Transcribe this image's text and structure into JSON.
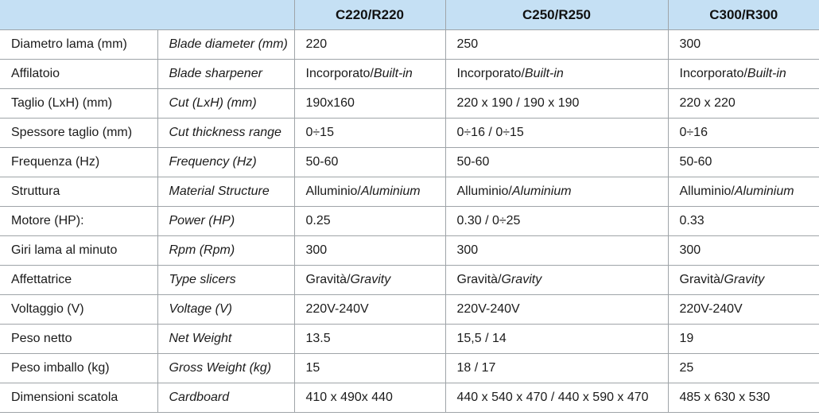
{
  "header": {
    "models": [
      "C220/R220",
      "C250/R250",
      "C300/R300"
    ]
  },
  "rows": [
    {
      "it": "Diametro lama (mm)",
      "en": "Blade diameter (mm)",
      "v": [
        {
          "a": "220",
          "b": ""
        },
        {
          "a": "250",
          "b": ""
        },
        {
          "a": "300",
          "b": ""
        }
      ]
    },
    {
      "it": "Affilatoio",
      "en": "Blade sharpener",
      "v": [
        {
          "a": "Incorporato/",
          "b": "Built-in"
        },
        {
          "a": "Incorporato/",
          "b": "Built-in"
        },
        {
          "a": "Incorporato/",
          "b": "Built-in"
        }
      ]
    },
    {
      "it": "Taglio (LxH) (mm)",
      "en": "Cut (LxH) (mm)",
      "v": [
        {
          "a": "190x160",
          "b": ""
        },
        {
          "a": "220 x 190 / 190 x 190",
          "b": ""
        },
        {
          "a": "220 x 220",
          "b": ""
        }
      ]
    },
    {
      "it": "Spessore taglio (mm)",
      "en": "Cut thickness range",
      "v": [
        {
          "a": "0÷15",
          "b": ""
        },
        {
          "a": "0÷16 / 0÷15",
          "b": ""
        },
        {
          "a": "0÷16",
          "b": ""
        }
      ]
    },
    {
      "it": "Frequenza (Hz)",
      "en": "Frequency (Hz)",
      "v": [
        {
          "a": "50-60",
          "b": ""
        },
        {
          "a": "50-60",
          "b": ""
        },
        {
          "a": "50-60",
          "b": ""
        }
      ]
    },
    {
      "it": "Struttura",
      "en": "Material Structure",
      "v": [
        {
          "a": "Alluminio/",
          "b": "Aluminium"
        },
        {
          "a": "Alluminio/",
          "b": "Aluminium"
        },
        {
          "a": "Alluminio/",
          "b": "Aluminium"
        }
      ]
    },
    {
      "it": "Motore (HP):",
      "en": "Power (HP)",
      "v": [
        {
          "a": "0.25",
          "b": ""
        },
        {
          "a": "0.30 / 0÷25",
          "b": ""
        },
        {
          "a": "0.33",
          "b": ""
        }
      ]
    },
    {
      "it": "Giri lama al minuto",
      "en": "Rpm (Rpm)",
      "v": [
        {
          "a": "300",
          "b": ""
        },
        {
          "a": "300",
          "b": ""
        },
        {
          "a": "300",
          "b": ""
        }
      ]
    },
    {
      "it": "Affettatrice",
      "en": "Type slicers",
      "v": [
        {
          "a": "Gravità/",
          "b": "Gravity"
        },
        {
          "a": "Gravità/",
          "b": "Gravity"
        },
        {
          "a": "Gravità/",
          "b": "Gravity"
        }
      ]
    },
    {
      "it": "Voltaggio (V)",
      "en": "Voltage (V)",
      "v": [
        {
          "a": "220V-240V",
          "b": ""
        },
        {
          "a": "220V-240V",
          "b": ""
        },
        {
          "a": "220V-240V",
          "b": ""
        }
      ]
    },
    {
      "it": "Peso netto",
      "en": "Net Weight",
      "v": [
        {
          "a": "13.5",
          "b": ""
        },
        {
          "a": "15,5 / 14",
          "b": ""
        },
        {
          "a": "19",
          "b": ""
        }
      ]
    },
    {
      "it": "Peso imballo (kg)",
      "en": "Gross Weight (kg)",
      "v": [
        {
          "a": "15",
          "b": ""
        },
        {
          "a": "18 / 17",
          "b": ""
        },
        {
          "a": "25",
          "b": ""
        }
      ]
    },
    {
      "it": "Dimensioni scatola",
      "en": "Cardboard",
      "v": [
        {
          "a": "410 x 490x 440",
          "b": ""
        },
        {
          "a": "440 x 540 x 470 / 440 x 590 x 470",
          "b": ""
        },
        {
          "a": "485 x 630 x 530",
          "b": ""
        }
      ]
    }
  ],
  "colors": {
    "header_bg": "#c5e0f4",
    "border": "#9fa4a8",
    "text": "#1b1b1b"
  }
}
